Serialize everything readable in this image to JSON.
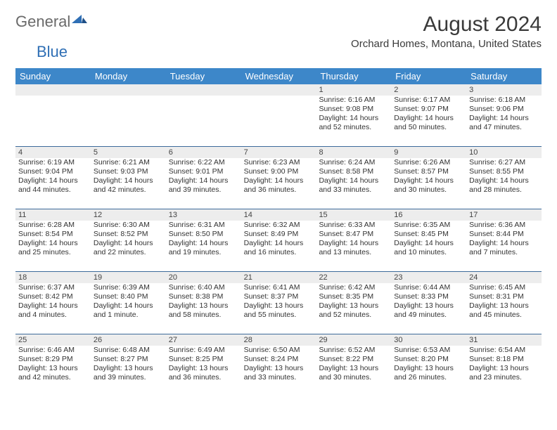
{
  "logo": {
    "part1": "General",
    "part2": "Blue"
  },
  "title": "August 2024",
  "location": "Orchard Homes, Montana, United States",
  "colors": {
    "header_bg": "#3d87c9",
    "header_text": "#ffffff",
    "daynum_bg": "#ededed",
    "row_border": "#3d6a9a",
    "logo_blue": "#2f6fb5",
    "logo_gray": "#6a6a6a"
  },
  "weekdays": [
    "Sunday",
    "Monday",
    "Tuesday",
    "Wednesday",
    "Thursday",
    "Friday",
    "Saturday"
  ],
  "days": [
    {
      "n": 1,
      "sr": "6:16 AM",
      "ss": "9:08 PM",
      "dl": "14 hours and 52 minutes."
    },
    {
      "n": 2,
      "sr": "6:17 AM",
      "ss": "9:07 PM",
      "dl": "14 hours and 50 minutes."
    },
    {
      "n": 3,
      "sr": "6:18 AM",
      "ss": "9:06 PM",
      "dl": "14 hours and 47 minutes."
    },
    {
      "n": 4,
      "sr": "6:19 AM",
      "ss": "9:04 PM",
      "dl": "14 hours and 44 minutes."
    },
    {
      "n": 5,
      "sr": "6:21 AM",
      "ss": "9:03 PM",
      "dl": "14 hours and 42 minutes."
    },
    {
      "n": 6,
      "sr": "6:22 AM",
      "ss": "9:01 PM",
      "dl": "14 hours and 39 minutes."
    },
    {
      "n": 7,
      "sr": "6:23 AM",
      "ss": "9:00 PM",
      "dl": "14 hours and 36 minutes."
    },
    {
      "n": 8,
      "sr": "6:24 AM",
      "ss": "8:58 PM",
      "dl": "14 hours and 33 minutes."
    },
    {
      "n": 9,
      "sr": "6:26 AM",
      "ss": "8:57 PM",
      "dl": "14 hours and 30 minutes."
    },
    {
      "n": 10,
      "sr": "6:27 AM",
      "ss": "8:55 PM",
      "dl": "14 hours and 28 minutes."
    },
    {
      "n": 11,
      "sr": "6:28 AM",
      "ss": "8:54 PM",
      "dl": "14 hours and 25 minutes."
    },
    {
      "n": 12,
      "sr": "6:30 AM",
      "ss": "8:52 PM",
      "dl": "14 hours and 22 minutes."
    },
    {
      "n": 13,
      "sr": "6:31 AM",
      "ss": "8:50 PM",
      "dl": "14 hours and 19 minutes."
    },
    {
      "n": 14,
      "sr": "6:32 AM",
      "ss": "8:49 PM",
      "dl": "14 hours and 16 minutes."
    },
    {
      "n": 15,
      "sr": "6:33 AM",
      "ss": "8:47 PM",
      "dl": "14 hours and 13 minutes."
    },
    {
      "n": 16,
      "sr": "6:35 AM",
      "ss": "8:45 PM",
      "dl": "14 hours and 10 minutes."
    },
    {
      "n": 17,
      "sr": "6:36 AM",
      "ss": "8:44 PM",
      "dl": "14 hours and 7 minutes."
    },
    {
      "n": 18,
      "sr": "6:37 AM",
      "ss": "8:42 PM",
      "dl": "14 hours and 4 minutes."
    },
    {
      "n": 19,
      "sr": "6:39 AM",
      "ss": "8:40 PM",
      "dl": "14 hours and 1 minute."
    },
    {
      "n": 20,
      "sr": "6:40 AM",
      "ss": "8:38 PM",
      "dl": "13 hours and 58 minutes."
    },
    {
      "n": 21,
      "sr": "6:41 AM",
      "ss": "8:37 PM",
      "dl": "13 hours and 55 minutes."
    },
    {
      "n": 22,
      "sr": "6:42 AM",
      "ss": "8:35 PM",
      "dl": "13 hours and 52 minutes."
    },
    {
      "n": 23,
      "sr": "6:44 AM",
      "ss": "8:33 PM",
      "dl": "13 hours and 49 minutes."
    },
    {
      "n": 24,
      "sr": "6:45 AM",
      "ss": "8:31 PM",
      "dl": "13 hours and 45 minutes."
    },
    {
      "n": 25,
      "sr": "6:46 AM",
      "ss": "8:29 PM",
      "dl": "13 hours and 42 minutes."
    },
    {
      "n": 26,
      "sr": "6:48 AM",
      "ss": "8:27 PM",
      "dl": "13 hours and 39 minutes."
    },
    {
      "n": 27,
      "sr": "6:49 AM",
      "ss": "8:25 PM",
      "dl": "13 hours and 36 minutes."
    },
    {
      "n": 28,
      "sr": "6:50 AM",
      "ss": "8:24 PM",
      "dl": "13 hours and 33 minutes."
    },
    {
      "n": 29,
      "sr": "6:52 AM",
      "ss": "8:22 PM",
      "dl": "13 hours and 30 minutes."
    },
    {
      "n": 30,
      "sr": "6:53 AM",
      "ss": "8:20 PM",
      "dl": "13 hours and 26 minutes."
    },
    {
      "n": 31,
      "sr": "6:54 AM",
      "ss": "8:18 PM",
      "dl": "13 hours and 23 minutes."
    }
  ],
  "labels": {
    "sunrise": "Sunrise:",
    "sunset": "Sunset:",
    "daylight": "Daylight:"
  },
  "first_weekday_index": 4
}
